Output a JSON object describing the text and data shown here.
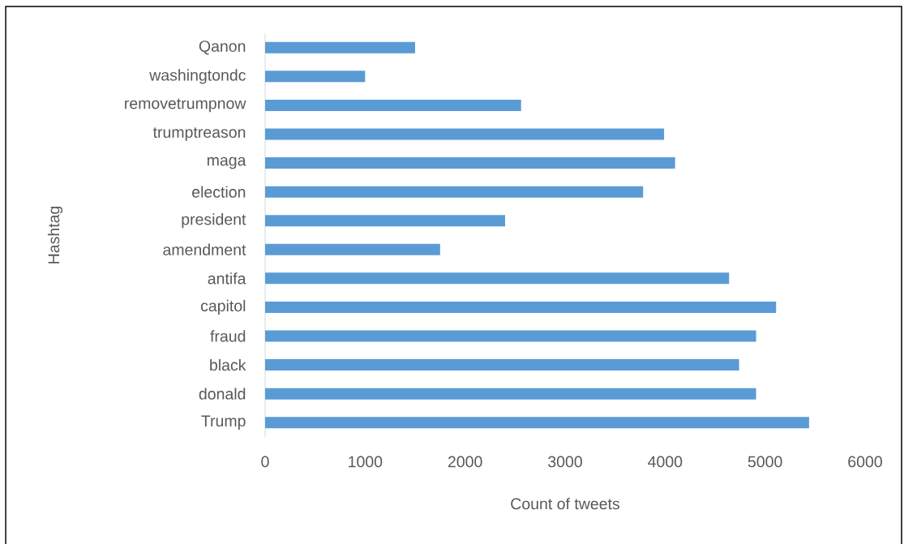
{
  "chart_data": {
    "type": "bar",
    "orientation": "horizontal",
    "xlabel": "Count of tweets",
    "ylabel": "Hashtag",
    "categories": [
      "Qanon",
      "washingtondc",
      "removetrumpnow",
      "trumptreason",
      "maga",
      "election",
      "president",
      "amendment",
      "antifa",
      "capitol",
      "fraud",
      "black",
      "donald",
      "Trump"
    ],
    "values": [
      1500,
      1000,
      2560,
      3990,
      4100,
      3780,
      2400,
      1750,
      4640,
      5110,
      4910,
      4740,
      4910,
      5440
    ],
    "color": "#5b9bd5",
    "xlim": [
      0,
      6000
    ],
    "xticks": [
      0,
      1000,
      2000,
      3000,
      4000,
      5000,
      6000
    ]
  }
}
